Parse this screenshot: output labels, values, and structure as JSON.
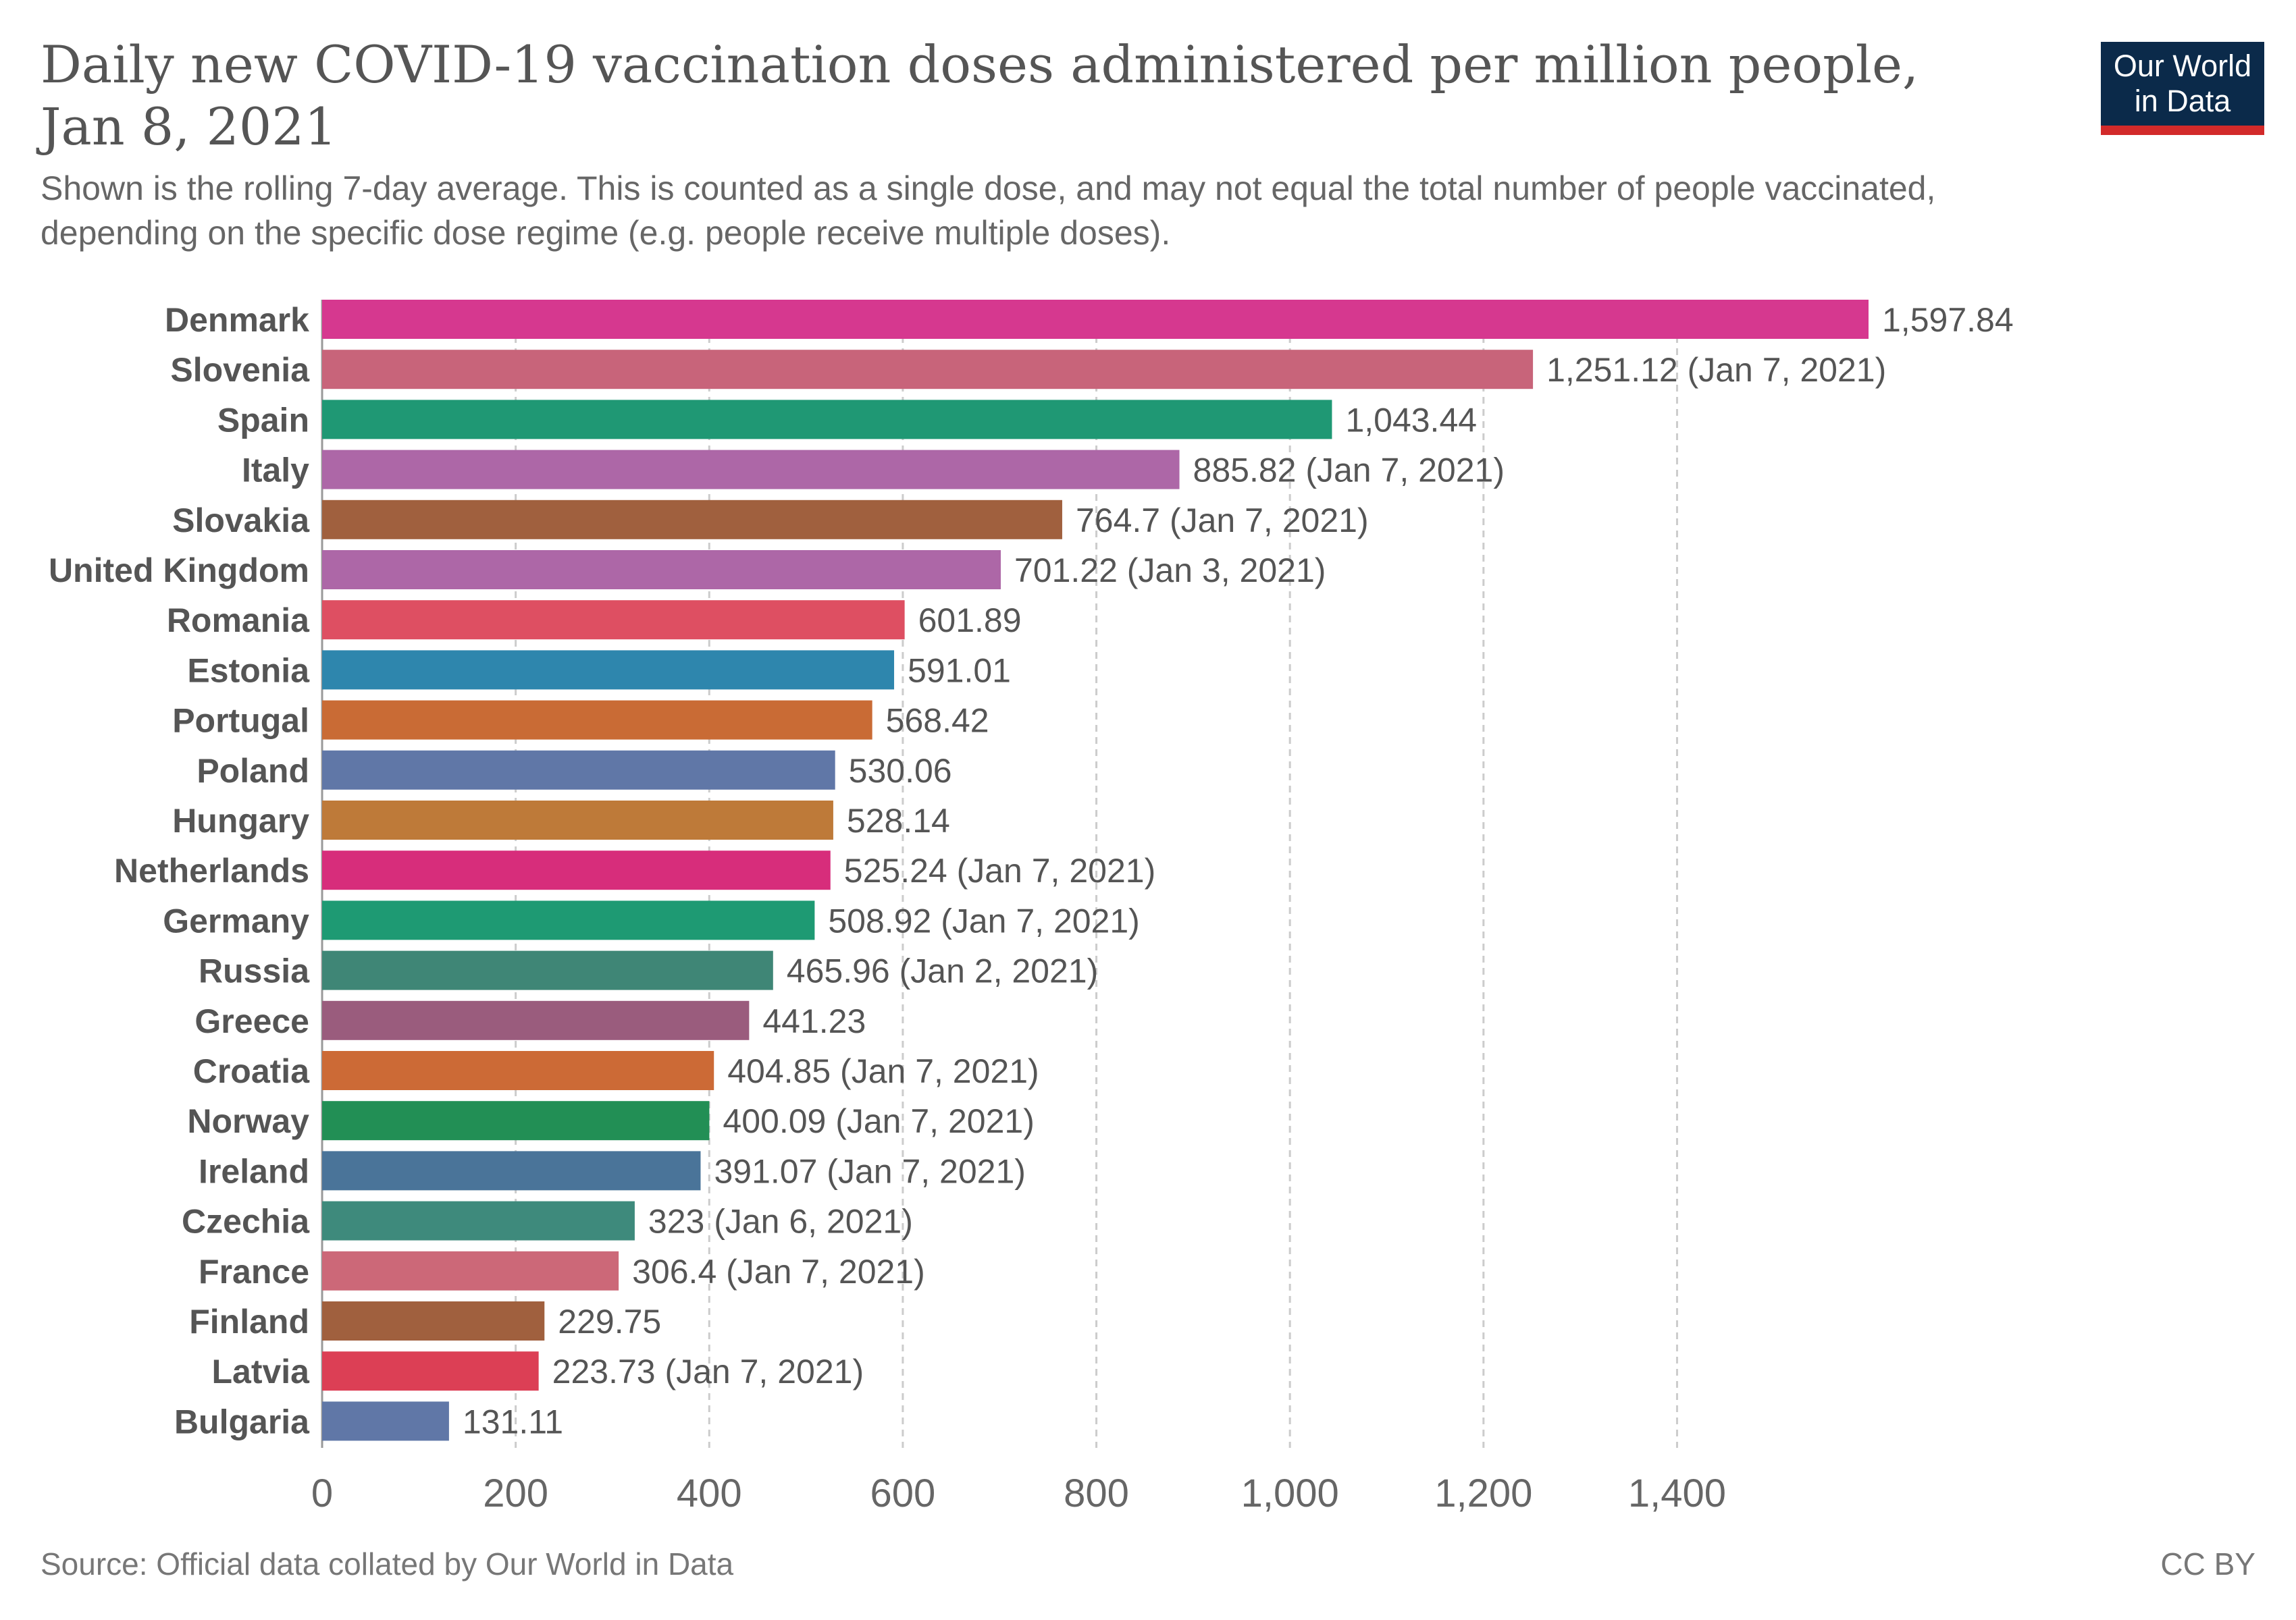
{
  "header": {
    "title": "Daily new COVID-19 vaccination doses administered per million people, Jan 8, 2021",
    "subtitle": "Shown is the rolling 7-day average. This is counted as a single dose, and may not equal the total number of people vaccinated, depending on the specific dose regime (e.g. people receive multiple doses).",
    "logo_line1": "Our World",
    "logo_line2": "in Data"
  },
  "footer": {
    "source": "Source: Official data collated by Our World in Data",
    "license": "CC BY"
  },
  "colors": {
    "logo_bg": "#0b2a4a",
    "logo_bar": "#d22a2a"
  },
  "chart_data": {
    "type": "bar",
    "orientation": "horizontal",
    "xlim": [
      0,
      1597.84
    ],
    "x_ticks": [
      0,
      200,
      400,
      600,
      800,
      1000,
      1200,
      1400
    ],
    "x_tick_labels": [
      "0",
      "200",
      "400",
      "600",
      "800",
      "1,000",
      "1,200",
      "1,400"
    ],
    "grid": "vertical dashed",
    "categories": [
      "Denmark",
      "Slovenia",
      "Spain",
      "Italy",
      "Slovakia",
      "United Kingdom",
      "Romania",
      "Estonia",
      "Portugal",
      "Poland",
      "Hungary",
      "Netherlands",
      "Germany",
      "Russia",
      "Greece",
      "Croatia",
      "Norway",
      "Ireland",
      "Czechia",
      "France",
      "Finland",
      "Latvia",
      "Bulgaria"
    ],
    "values": [
      1597.84,
      1251.12,
      1043.44,
      885.82,
      764.7,
      701.22,
      601.89,
      591.01,
      568.42,
      530.06,
      528.14,
      525.24,
      508.92,
      465.96,
      441.23,
      404.85,
      400.09,
      391.07,
      323,
      306.4,
      229.75,
      223.73,
      131.11
    ],
    "value_labels": [
      "1,597.84",
      "1,251.12 (Jan 7, 2021)",
      "1,043.44",
      "885.82 (Jan 7, 2021)",
      "764.7 (Jan 7, 2021)",
      "701.22 (Jan 3, 2021)",
      "601.89",
      "591.01",
      "568.42",
      "530.06",
      "528.14",
      "525.24 (Jan 7, 2021)",
      "508.92 (Jan 7, 2021)",
      "465.96 (Jan 2, 2021)",
      "441.23",
      "404.85 (Jan 7, 2021)",
      "400.09 (Jan 7, 2021)",
      "391.07 (Jan 7, 2021)",
      "323 (Jan 6, 2021)",
      "306.4 (Jan 7, 2021)",
      "229.75",
      "223.73 (Jan 7, 2021)",
      "131.11"
    ],
    "bar_colors": [
      "#d6388f",
      "#c8647a",
      "#1f9874",
      "#ad67a7",
      "#a0603e",
      "#ad67a7",
      "#de4f62",
      "#2e86ad",
      "#c96b35",
      "#6077a7",
      "#be7a39",
      "#d72d7b",
      "#1e9a73",
      "#3f8676",
      "#9a5c7d",
      "#cc6a36",
      "#228f55",
      "#4a7499",
      "#3e8a7c",
      "#cc6878",
      "#a0603e",
      "#dc3f55",
      "#6077a7"
    ]
  }
}
